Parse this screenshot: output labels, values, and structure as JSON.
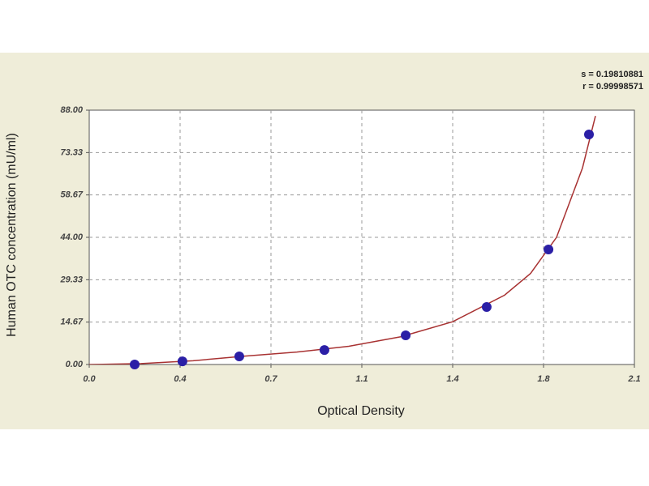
{
  "chart_data": {
    "type": "scatter",
    "x_label": "Optical Density",
    "y_label": "Human OTC concentration (mU/ml)",
    "annotations": [
      "s = 0.19810881",
      "r = 0.99998571"
    ],
    "xlim": [
      0,
      2.1
    ],
    "xticks": [
      {
        "value": 0,
        "label": "0.0"
      },
      {
        "value": 0.35,
        "label": "0.4"
      },
      0.7,
      {
        "value": 1.05,
        "label": "1.1"
      },
      1.4,
      {
        "value": 1.75,
        "label": "1.8"
      },
      2.1
    ],
    "ylim": [
      0,
      88
    ],
    "yticks": [
      {
        "value": 0,
        "label": "0.00"
      },
      14.67,
      29.33,
      {
        "value": 44,
        "label": "44.00"
      },
      58.67,
      73.33,
      {
        "value": 88,
        "label": "88.00"
      }
    ],
    "grid": true,
    "points": {
      "color": "#2b1fa6",
      "x": [
        0.175,
        0.359,
        0.578,
        0.906,
        1.219,
        1.531,
        1.769,
        1.925
      ],
      "y": [
        0,
        1.1,
        2.8,
        5.0,
        10.1,
        19.9,
        39.8,
        79.6
      ]
    },
    "fit": {
      "color": "#a83232",
      "x": [
        0,
        0.2,
        0.4,
        0.6,
        0.8,
        1.0,
        1.2,
        1.4,
        1.6,
        1.7,
        1.8,
        1.9,
        1.95
      ],
      "y": [
        0,
        0.3,
        1.3,
        2.9,
        4.3,
        6.3,
        9.6,
        14.8,
        24,
        31.5,
        44,
        68,
        86
      ]
    }
  }
}
